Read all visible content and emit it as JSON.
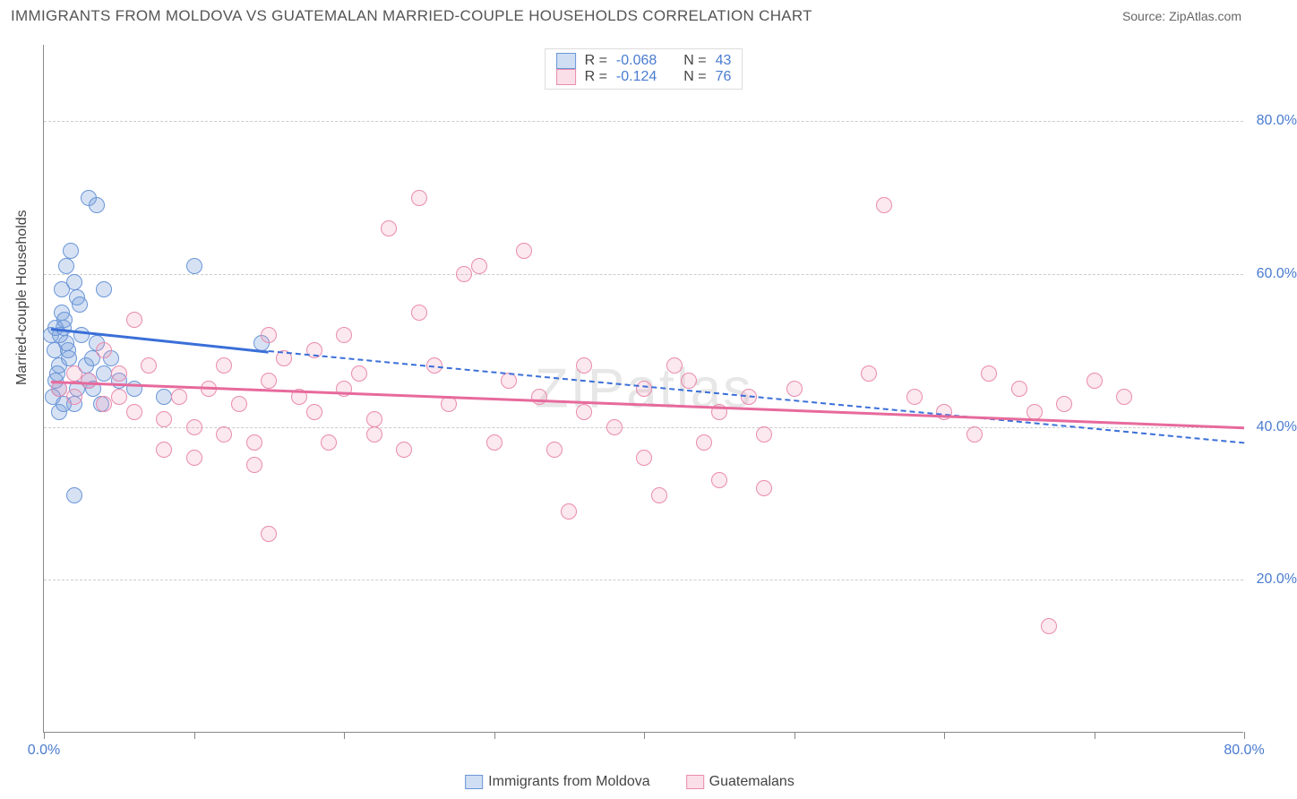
{
  "title": "IMMIGRANTS FROM MOLDOVA VS GUATEMALAN MARRIED-COUPLE HOUSEHOLDS CORRELATION CHART",
  "source": "Source: ZipAtlas.com",
  "watermark": "ZIPatlas",
  "ylabel": "Married-couple Households",
  "chart": {
    "type": "scatter",
    "background_color": "#ffffff",
    "grid_color": "#cccccc",
    "axis_color": "#888888",
    "tick_label_color": "#4a7bd0",
    "xlim": [
      0,
      80
    ],
    "ylim": [
      0,
      90
    ],
    "yticks": [
      20,
      40,
      60,
      80
    ],
    "ytick_labels": [
      "20.0%",
      "40.0%",
      "60.0%",
      "80.0%"
    ],
    "xticks": [
      0,
      10,
      20,
      30,
      40,
      50,
      60,
      70,
      80
    ],
    "xtick_labels": {
      "0": "0.0%",
      "80": "80.0%"
    },
    "marker_size": 18,
    "label_fontsize": 16,
    "title_fontsize": 17
  },
  "series": [
    {
      "name": "Immigrants from Moldova",
      "key": "blue",
      "marker_fill": "rgba(120,160,220,0.30)",
      "marker_stroke": "#6a95d8",
      "line_color": "#3a6fd8",
      "R": "-0.068",
      "N": "43",
      "trend": {
        "x1": 0.5,
        "y1": 53,
        "x2": 15,
        "y2": 50,
        "ext_x2": 80,
        "ext_y2": 38
      },
      "points": [
        [
          0.5,
          52
        ],
        [
          0.7,
          50
        ],
        [
          1.0,
          48
        ],
        [
          1.2,
          55
        ],
        [
          1.3,
          53
        ],
        [
          1.5,
          51
        ],
        [
          1.0,
          45
        ],
        [
          1.2,
          58
        ],
        [
          1.5,
          61
        ],
        [
          1.8,
          63
        ],
        [
          2.0,
          59
        ],
        [
          2.2,
          57
        ],
        [
          0.8,
          46
        ],
        [
          0.6,
          44
        ],
        [
          1.1,
          52
        ],
        [
          1.4,
          54
        ],
        [
          1.6,
          50
        ],
        [
          2.5,
          52
        ],
        [
          2.8,
          48
        ],
        [
          3.0,
          46
        ],
        [
          3.2,
          49
        ],
        [
          3.5,
          51
        ],
        [
          4.0,
          47
        ],
        [
          4.5,
          49
        ],
        [
          1.0,
          42
        ],
        [
          1.3,
          43
        ],
        [
          2.0,
          43
        ],
        [
          2.2,
          45
        ],
        [
          0.9,
          47
        ],
        [
          1.7,
          49
        ],
        [
          2.4,
          56
        ],
        [
          3.3,
          45
        ],
        [
          3.8,
          43
        ],
        [
          5.0,
          46
        ],
        [
          6.0,
          45
        ],
        [
          8.0,
          44
        ],
        [
          10.0,
          61
        ],
        [
          3.0,
          70
        ],
        [
          3.5,
          69
        ],
        [
          4.0,
          58
        ],
        [
          2.0,
          31
        ],
        [
          14.5,
          51
        ],
        [
          0.8,
          53
        ]
      ]
    },
    {
      "name": "Guatemalans",
      "key": "pink",
      "marker_fill": "rgba(240,150,180,0.22)",
      "marker_stroke": "#e98bad",
      "line_color": "#e76a9c",
      "R": "-0.124",
      "N": "76",
      "trend": {
        "x1": 0.5,
        "y1": 46,
        "x2": 80,
        "y2": 40
      },
      "points": [
        [
          1,
          45
        ],
        [
          2,
          44
        ],
        [
          3,
          46
        ],
        [
          4,
          43
        ],
        [
          5,
          47
        ],
        [
          6,
          42
        ],
        [
          7,
          48
        ],
        [
          8,
          41
        ],
        [
          9,
          44
        ],
        [
          10,
          40
        ],
        [
          11,
          45
        ],
        [
          12,
          39
        ],
        [
          13,
          43
        ],
        [
          14,
          38
        ],
        [
          15,
          46
        ],
        [
          4,
          50
        ],
        [
          6,
          54
        ],
        [
          8,
          37
        ],
        [
          10,
          36
        ],
        [
          12,
          48
        ],
        [
          14,
          35
        ],
        [
          15,
          26
        ],
        [
          16,
          49
        ],
        [
          17,
          44
        ],
        [
          18,
          50
        ],
        [
          19,
          38
        ],
        [
          20,
          45
        ],
        [
          20,
          52
        ],
        [
          21,
          47
        ],
        [
          22,
          41
        ],
        [
          23,
          66
        ],
        [
          24,
          37
        ],
        [
          25,
          55
        ],
        [
          25,
          70
        ],
        [
          26,
          48
        ],
        [
          27,
          43
        ],
        [
          28,
          60
        ],
        [
          29,
          61
        ],
        [
          30,
          38
        ],
        [
          31,
          46
        ],
        [
          32,
          63
        ],
        [
          33,
          44
        ],
        [
          34,
          37
        ],
        [
          35,
          29
        ],
        [
          36,
          48
        ],
        [
          36,
          42
        ],
        [
          38,
          40
        ],
        [
          40,
          45
        ],
        [
          40,
          36
        ],
        [
          41,
          31
        ],
        [
          42,
          48
        ],
        [
          43,
          46
        ],
        [
          44,
          38
        ],
        [
          45,
          42
        ],
        [
          45,
          33
        ],
        [
          47,
          44
        ],
        [
          48,
          39
        ],
        [
          48,
          32
        ],
        [
          50,
          45
        ],
        [
          55,
          47
        ],
        [
          56,
          69
        ],
        [
          58,
          44
        ],
        [
          60,
          42
        ],
        [
          62,
          39
        ],
        [
          63,
          47
        ],
        [
          65,
          45
        ],
        [
          66,
          42
        ],
        [
          67,
          14
        ],
        [
          68,
          43
        ],
        [
          70,
          46
        ],
        [
          72,
          44
        ],
        [
          15,
          52
        ],
        [
          18,
          42
        ],
        [
          22,
          39
        ],
        [
          5,
          44
        ],
        [
          2,
          47
        ]
      ]
    }
  ],
  "legend_top": {
    "R_label": "R =",
    "N_label": "N ="
  },
  "legend_bottom": [
    {
      "key": "blue",
      "label": "Immigrants from Moldova"
    },
    {
      "key": "pink",
      "label": "Guatemalans"
    }
  ]
}
